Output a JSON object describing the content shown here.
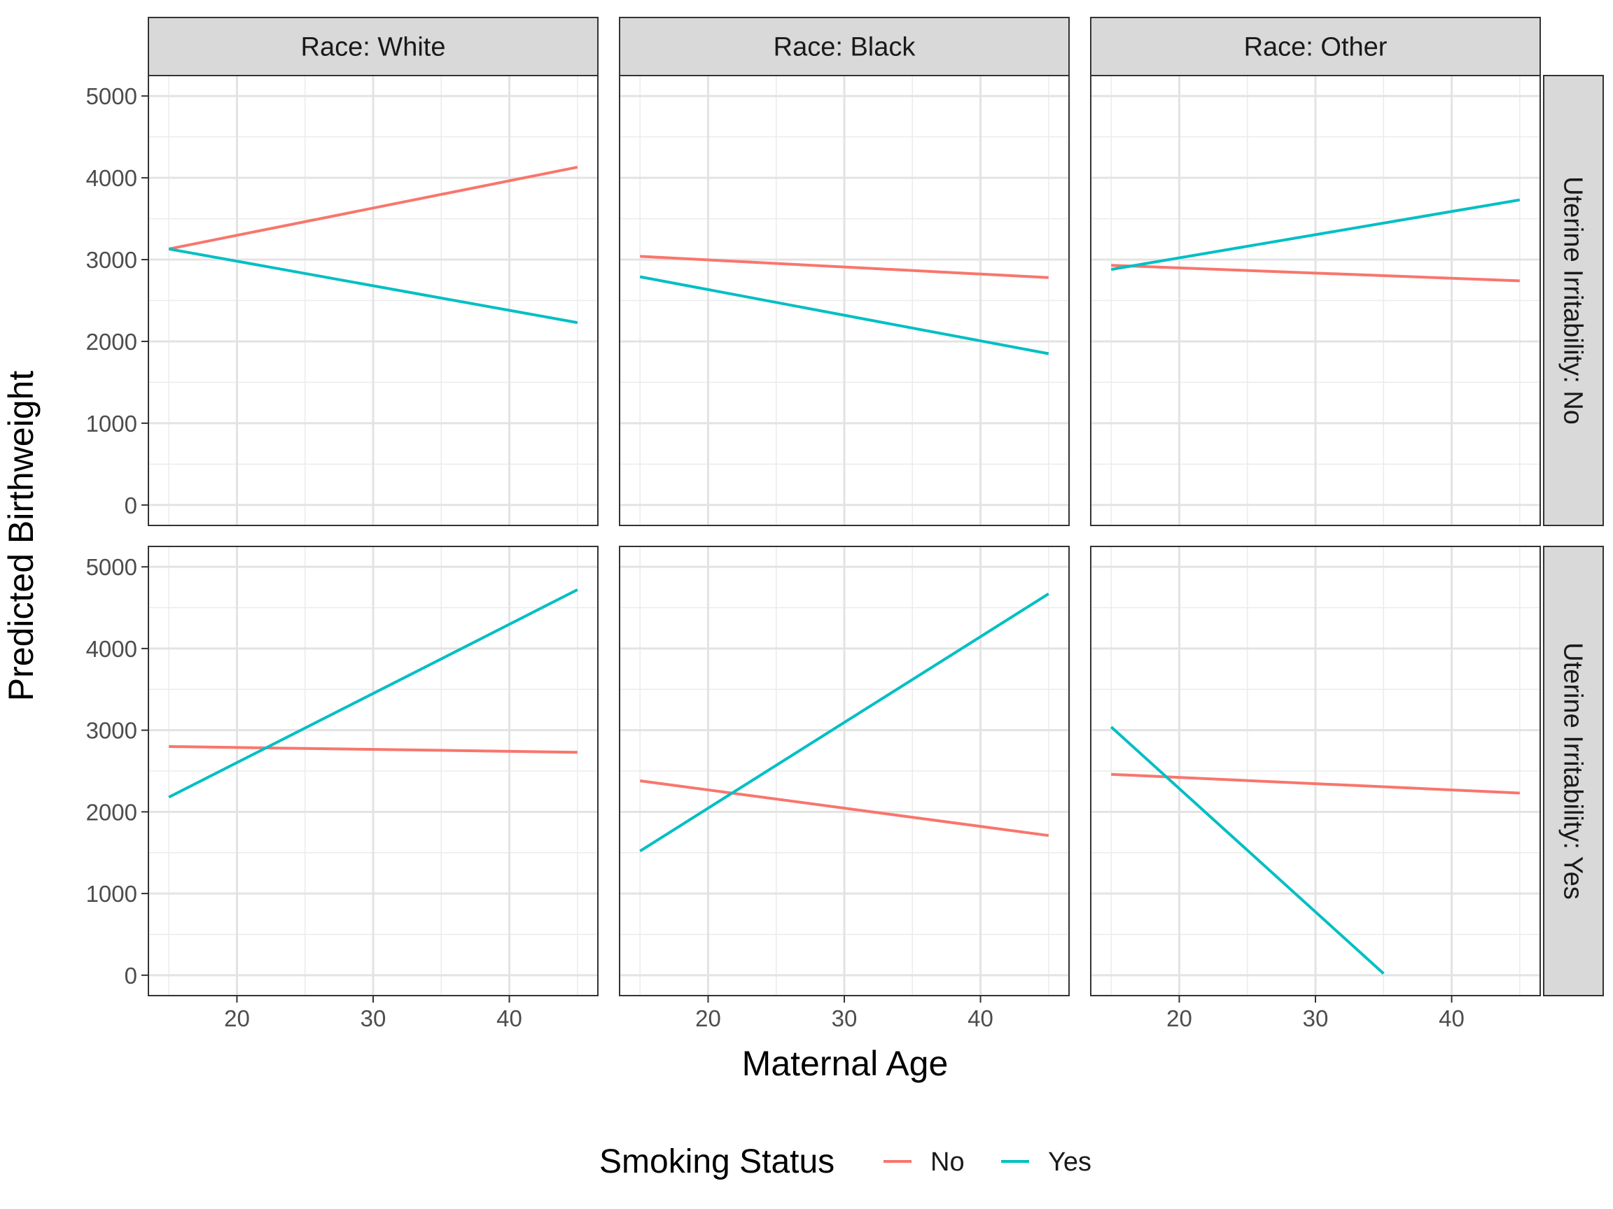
{
  "chart_data": {
    "type": "line",
    "xlabel": "Maternal Age",
    "ylabel": "Predicted Birthweight",
    "xlim": [
      13.5,
      46.5
    ],
    "ylim": [
      -250,
      5250
    ],
    "x_ticks": [
      20,
      30,
      40
    ],
    "y_ticks": [
      0,
      1000,
      2000,
      3000,
      4000,
      5000
    ],
    "grid": true,
    "legend": {
      "title": "Smoking Status",
      "position": "bottom",
      "entries": [
        {
          "label": "No",
          "color": "#F8766D"
        },
        {
          "label": "Yes",
          "color": "#00BFC4"
        }
      ]
    },
    "columns": [
      "Race: White",
      "Race: Black",
      "Race: Other"
    ],
    "rows": [
      "Uterine Irritability: No",
      "Uterine Irritability: Yes"
    ],
    "panels": [
      {
        "column": "Race: White",
        "row": "Uterine Irritability: No",
        "series": [
          {
            "smoking": "No",
            "x": [
              15,
              45
            ],
            "y": [
              3130,
              4130
            ]
          },
          {
            "smoking": "Yes",
            "x": [
              15,
              45
            ],
            "y": [
              3130,
              2230
            ]
          }
        ]
      },
      {
        "column": "Race: Black",
        "row": "Uterine Irritability: No",
        "series": [
          {
            "smoking": "No",
            "x": [
              15,
              45
            ],
            "y": [
              3040,
              2780
            ]
          },
          {
            "smoking": "Yes",
            "x": [
              15,
              45
            ],
            "y": [
              2790,
              1850
            ]
          }
        ]
      },
      {
        "column": "Race: Other",
        "row": "Uterine Irritability: No",
        "series": [
          {
            "smoking": "No",
            "x": [
              15,
              45
            ],
            "y": [
              2930,
              2740
            ]
          },
          {
            "smoking": "Yes",
            "x": [
              15,
              45
            ],
            "y": [
              2880,
              3730
            ]
          }
        ]
      },
      {
        "column": "Race: White",
        "row": "Uterine Irritability: Yes",
        "series": [
          {
            "smoking": "No",
            "x": [
              15,
              45
            ],
            "y": [
              2800,
              2730
            ]
          },
          {
            "smoking": "Yes",
            "x": [
              15,
              45
            ],
            "y": [
              2180,
              4720
            ]
          }
        ]
      },
      {
        "column": "Race: Black",
        "row": "Uterine Irritability: Yes",
        "series": [
          {
            "smoking": "No",
            "x": [
              15,
              45
            ],
            "y": [
              2380,
              1710
            ]
          },
          {
            "smoking": "Yes",
            "x": [
              15,
              45
            ],
            "y": [
              1520,
              4670
            ]
          }
        ]
      },
      {
        "column": "Race: Other",
        "row": "Uterine Irritability: Yes",
        "series": [
          {
            "smoking": "No",
            "x": [
              15,
              45
            ],
            "y": [
              2460,
              2230
            ]
          },
          {
            "smoking": "Yes",
            "x": [
              15,
              35
            ],
            "y": [
              3040,
              20
            ]
          }
        ]
      }
    ]
  }
}
